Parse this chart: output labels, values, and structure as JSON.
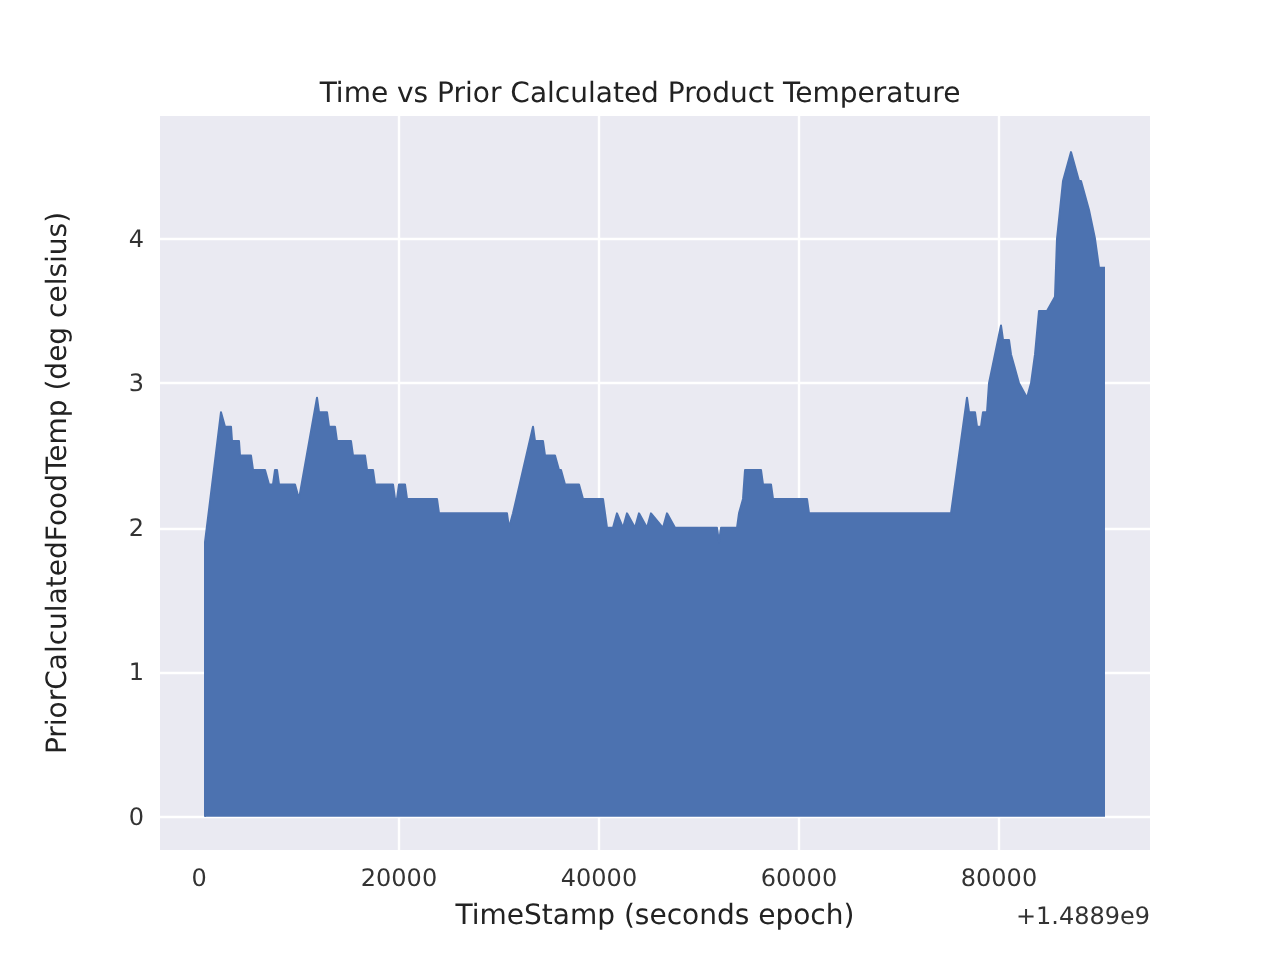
{
  "chart_data": {
    "type": "area",
    "title": "Time vs Prior Calculated Product Temperature",
    "xlabel": "TimeStamp (seconds epoch)",
    "ylabel": "PriorCalculatedFoodTemp (deg celsius)",
    "annotations": [
      "+1.4889e9"
    ],
    "x": [
      600,
      600,
      2200,
      2600,
      3200,
      3300,
      4000,
      4100,
      5200,
      5400,
      6600,
      7000,
      7400,
      7600,
      7800,
      8000,
      9600,
      10000,
      11800,
      12000,
      12800,
      13000,
      13600,
      13800,
      15200,
      15400,
      16200,
      16400,
      16600,
      16800,
      17400,
      17600,
      19400,
      19600,
      19800,
      20000,
      20600,
      20800,
      23800,
      24000,
      30800,
      31000,
      31400,
      33400,
      33600,
      34400,
      34600,
      35600,
      36000,
      36200,
      36600,
      37000,
      38000,
      38400,
      40400,
      40800,
      41400,
      41800,
      42400,
      42800,
      43600,
      44000,
      44800,
      45200,
      46400,
      46800,
      47600,
      48000,
      51800,
      52000,
      52200,
      53800,
      54000,
      54400,
      54600,
      56200,
      56400,
      57200,
      57400,
      60800,
      61000,
      75200,
      76800,
      77000,
      77600,
      77800,
      78200,
      78400,
      78800,
      79000,
      80200,
      80400,
      81000,
      81200,
      81600,
      82000,
      82800,
      83200,
      83600,
      84000,
      84800,
      85600,
      85800,
      86400,
      87200,
      87600,
      88000,
      88200,
      89000,
      89600,
      90000,
      90600
    ],
    "values": [
      0,
      1.9,
      2.8,
      2.7,
      2.7,
      2.6,
      2.6,
      2.5,
      2.5,
      2.4,
      2.4,
      2.3,
      2.3,
      2.4,
      2.4,
      2.3,
      2.3,
      2.2,
      2.9,
      2.8,
      2.8,
      2.7,
      2.7,
      2.6,
      2.6,
      2.5,
      2.5,
      2.5,
      2.5,
      2.4,
      2.4,
      2.3,
      2.3,
      2.2,
      2.2,
      2.3,
      2.3,
      2.2,
      2.2,
      2.1,
      2.1,
      2.0,
      2.1,
      2.7,
      2.6,
      2.6,
      2.5,
      2.5,
      2.4,
      2.4,
      2.3,
      2.3,
      2.3,
      2.2,
      2.2,
      2.0,
      2.0,
      2.1,
      2.0,
      2.1,
      2.0,
      2.1,
      2.0,
      2.1,
      2.0,
      2.1,
      2.0,
      2.0,
      2.0,
      1.9,
      2.0,
      2.0,
      2.1,
      2.2,
      2.4,
      2.4,
      2.3,
      2.3,
      2.2,
      2.2,
      2.1,
      2.1,
      2.9,
      2.8,
      2.8,
      2.7,
      2.7,
      2.8,
      2.8,
      3.0,
      3.4,
      3.3,
      3.3,
      3.2,
      3.1,
      3.0,
      2.9,
      3.0,
      3.2,
      3.5,
      3.5,
      3.6,
      4.0,
      4.4,
      4.6,
      4.5,
      4.4,
      4.4,
      4.2,
      4.0,
      3.8,
      3.8
    ],
    "color": "#4c72b0",
    "xlim": [
      -3900,
      95100
    ],
    "xticks": [
      0,
      20000,
      40000,
      60000,
      80000
    ],
    "ylim": [
      -0.23,
      4.85
    ],
    "yticks": [
      0,
      1,
      2,
      3,
      4
    ],
    "grid": true
  }
}
